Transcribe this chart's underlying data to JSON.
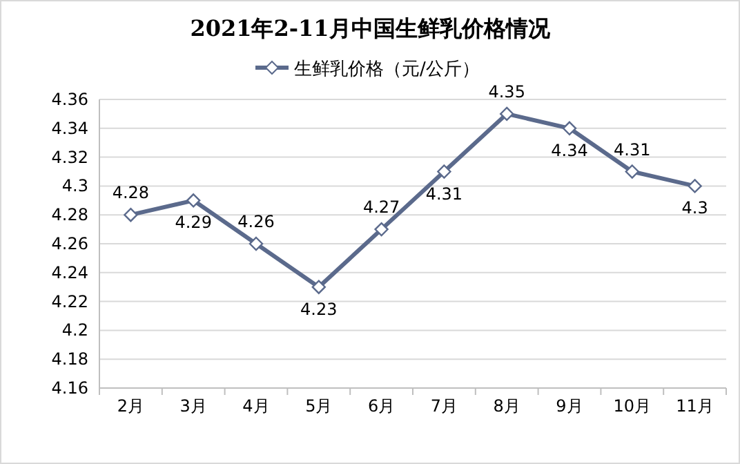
{
  "chart_data": {
    "type": "line",
    "title": "2021年2-11月中国生鲜乳价格情况",
    "categories": [
      "2月",
      "3月",
      "4月",
      "5月",
      "6月",
      "7月",
      "8月",
      "9月",
      "10月",
      "11月"
    ],
    "series": [
      {
        "name": "生鲜乳价格（元/公斤）",
        "color": "#5b6a8c",
        "values": [
          4.28,
          4.29,
          4.26,
          4.23,
          4.27,
          4.31,
          4.35,
          4.34,
          4.31,
          4.3
        ]
      }
    ],
    "ylim": [
      4.16,
      4.36
    ],
    "yticks": [
      4.16,
      4.18,
      4.2,
      4.22,
      4.24,
      4.26,
      4.28,
      4.3,
      4.32,
      4.34,
      4.36
    ],
    "grid": "y",
    "legend": "top",
    "marker": "diamond",
    "line_style": "solid",
    "data_labels": true
  }
}
